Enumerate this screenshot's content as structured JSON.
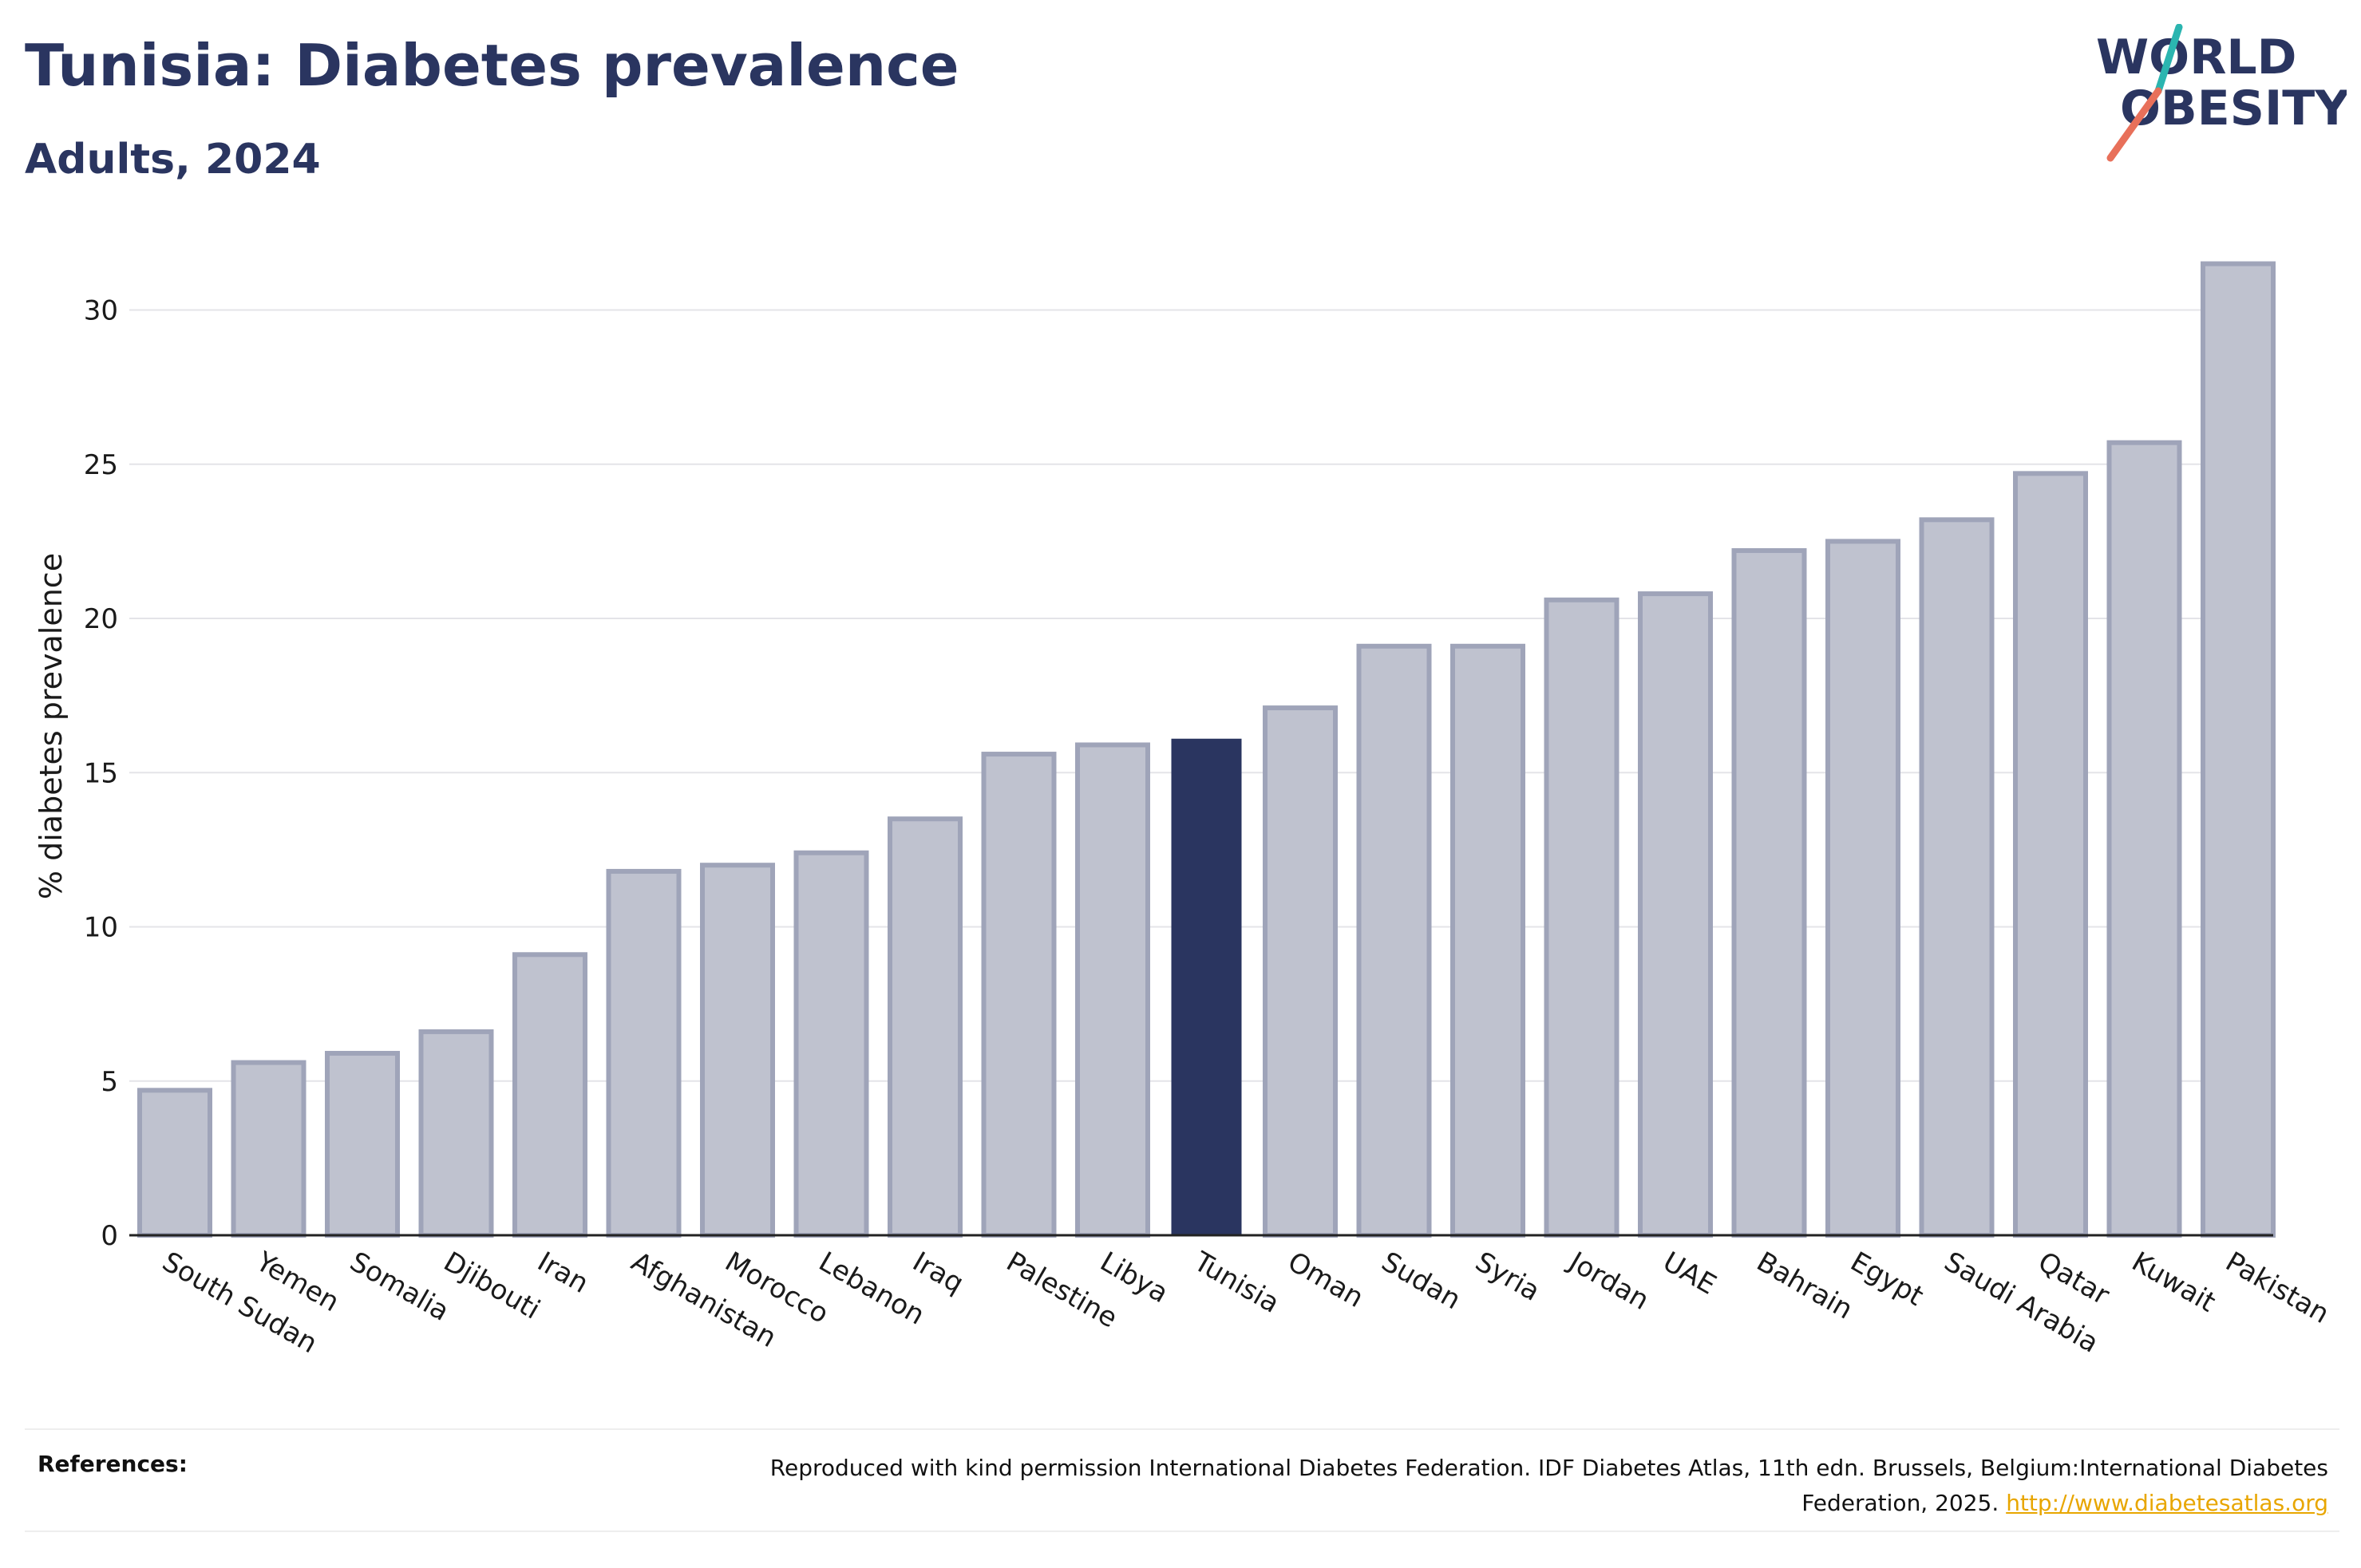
{
  "header": {
    "title": "Tunisia: Diabetes prevalence",
    "subtitle": "Adults, 2024"
  },
  "logo": {
    "line1": "WORLD",
    "line2": "OBESITY",
    "text_color": "#2a3560",
    "slash_teal": "#2bb5b0",
    "slash_coral": "#e8705a"
  },
  "chart_data": {
    "type": "bar",
    "title": "Tunisia: Diabetes prevalence",
    "subtitle": "Adults, 2024",
    "xlabel": "",
    "ylabel": "% diabetes prevalence",
    "ylim": [
      0,
      32
    ],
    "yticks": [
      0,
      5,
      10,
      15,
      20,
      25,
      30
    ],
    "grid": true,
    "highlight": "Tunisia",
    "colors": {
      "highlight": "#2a3560",
      "bar_fill": "#bfc2cf",
      "bar_edge": "#9fa4b9"
    },
    "categories": [
      "South Sudan",
      "Yemen",
      "Somalia",
      "Djibouti",
      "Iran",
      "Afghanistan",
      "Morocco",
      "Lebanon",
      "Iraq",
      "Palestine",
      "Libya",
      "Tunisia",
      "Oman",
      "Sudan",
      "Syria",
      "Jordan",
      "UAE",
      "Bahrain",
      "Egypt",
      "Saudi Arabia",
      "Qatar",
      "Kuwait",
      "Pakistan"
    ],
    "values": [
      4.7,
      5.6,
      5.9,
      6.6,
      9.1,
      11.8,
      12.0,
      12.4,
      13.5,
      15.6,
      15.9,
      16.1,
      17.1,
      19.1,
      19.1,
      20.6,
      20.8,
      22.2,
      22.5,
      23.2,
      24.7,
      25.7,
      31.5
    ]
  },
  "references": {
    "label": "References:",
    "text": "Reproduced with kind permission International Diabetes Federation. IDF Diabetes Atlas, 11th edn. Brussels, Belgium:International Diabetes Federation, 2025.",
    "link_text": "http://www.diabetesatlas.org",
    "link_color": "#e8a600"
  }
}
